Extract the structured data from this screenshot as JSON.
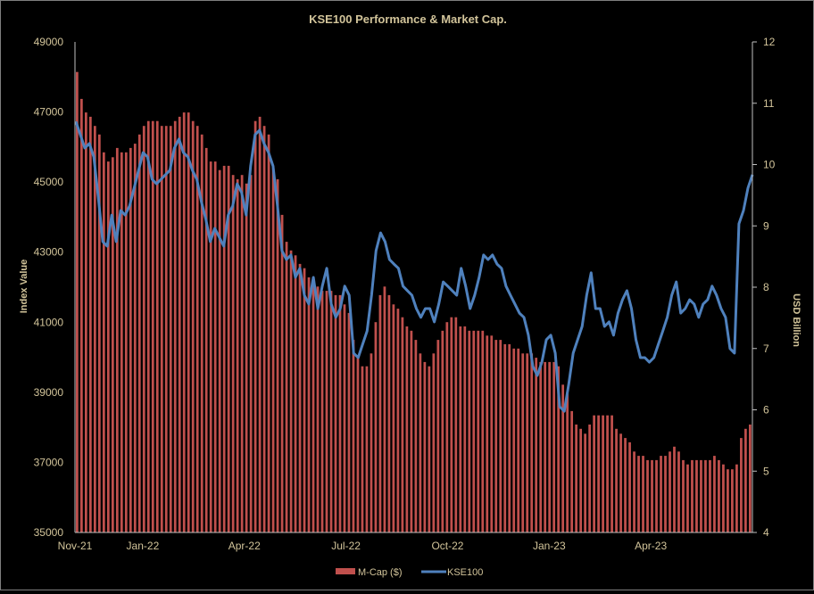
{
  "chart_data": {
    "type": "bar+line",
    "title": "KSE100 Performance & Market Cap.",
    "ylabel": "Index Value",
    "y2label": "USD Billion",
    "ylim": [
      35000,
      49000
    ],
    "y2lim": [
      4,
      12
    ],
    "yticks": [
      "35000",
      "37000",
      "39000",
      "41000",
      "43000",
      "45000",
      "47000",
      "49000"
    ],
    "y2ticks": [
      "4",
      "5",
      "6",
      "7",
      "8",
      "9",
      "10",
      "11",
      "12"
    ],
    "xticks": [
      "Nov-21",
      "Jan-22",
      "Apr-22",
      "Jul-22",
      "Oct-22",
      "Jan-23",
      "Apr-23"
    ],
    "x_start": "2021-11-01",
    "x_end": "2023-06-30",
    "grid": false,
    "legend_position": "bottom",
    "colors": {
      "mcap": "#c0504d",
      "kse": "#4f81bd",
      "text": "#d2c49a"
    },
    "series": [
      {
        "name": "M-Cap ($)",
        "axis": "right",
        "type": "bar",
        "values": [
          11.51,
          11.07,
          10.85,
          10.78,
          10.63,
          10.49,
          10.2,
          10.05,
          10.12,
          10.27,
          10.2,
          10.2,
          10.27,
          10.34,
          10.49,
          10.63,
          10.71,
          10.71,
          10.71,
          10.63,
          10.63,
          10.63,
          10.71,
          10.78,
          10.85,
          10.85,
          10.71,
          10.63,
          10.49,
          10.27,
          10.05,
          10.05,
          9.91,
          9.98,
          9.98,
          9.83,
          9.76,
          9.83,
          9.69,
          9.83,
          10.71,
          10.78,
          10.63,
          10.49,
          9.98,
          9.76,
          9.18,
          8.74,
          8.6,
          8.52,
          8.38,
          8.31,
          8.16,
          8.09,
          8.01,
          7.94,
          7.94,
          7.94,
          7.87,
          7.87,
          7.72,
          7.58,
          7.14,
          6.85,
          6.71,
          6.71,
          6.92,
          7.43,
          7.87,
          8.01,
          7.87,
          7.72,
          7.65,
          7.51,
          7.36,
          7.29,
          7.14,
          6.92,
          6.78,
          6.71,
          6.92,
          7.14,
          7.29,
          7.43,
          7.51,
          7.51,
          7.36,
          7.36,
          7.29,
          7.29,
          7.29,
          7.29,
          7.21,
          7.21,
          7.14,
          7.14,
          7.07,
          7.07,
          7.0,
          7.0,
          6.92,
          6.92,
          6.92,
          6.85,
          6.78,
          6.78,
          6.78,
          6.78,
          6.71,
          6.41,
          6.27,
          5.98,
          5.76,
          5.69,
          5.61,
          5.76,
          5.91,
          5.91,
          5.91,
          5.91,
          5.91,
          5.69,
          5.61,
          5.54,
          5.47,
          5.32,
          5.25,
          5.25,
          5.18,
          5.18,
          5.18,
          5.25,
          5.25,
          5.32,
          5.4,
          5.32,
          5.18,
          5.11,
          5.18,
          5.18,
          5.18,
          5.18,
          5.18,
          5.25,
          5.18,
          5.11,
          5.03,
          5.03,
          5.11,
          5.54,
          5.69,
          5.76
        ]
      },
      {
        "name": "KSE100",
        "axis": "left",
        "type": "line",
        "values": [
          46730,
          46350,
          45970,
          46100,
          45720,
          44570,
          43300,
          43170,
          44060,
          43300,
          44190,
          44060,
          44320,
          44830,
          45340,
          45840,
          45720,
          45080,
          44950,
          45080,
          45210,
          45340,
          45970,
          46230,
          45840,
          45720,
          45340,
          45080,
          44440,
          43940,
          43300,
          43680,
          43430,
          43170,
          44060,
          44320,
          44950,
          44700,
          44060,
          45460,
          46350,
          46480,
          46100,
          45840,
          45460,
          44320,
          43040,
          42790,
          42920,
          42280,
          42540,
          41770,
          41520,
          42280,
          41390,
          42030,
          42540,
          41520,
          41140,
          41390,
          42030,
          41770,
          40120,
          39990,
          40370,
          40750,
          41770,
          43040,
          43550,
          43300,
          42790,
          42660,
          42540,
          42030,
          41900,
          41770,
          41390,
          41140,
          41390,
          41390,
          41010,
          41520,
          42150,
          42030,
          41900,
          41770,
          42540,
          42030,
          41390,
          41770,
          42280,
          42920,
          42790,
          42920,
          42660,
          42540,
          42030,
          41770,
          41520,
          41260,
          41140,
          40630,
          39740,
          39480,
          39860,
          40500,
          40630,
          40120,
          38590,
          38460,
          39230,
          40120,
          40500,
          40880,
          41770,
          42410,
          41390,
          41390,
          40880,
          41010,
          40630,
          41260,
          41640,
          41900,
          41390,
          40500,
          39990,
          39990,
          39860,
          39990,
          40370,
          40750,
          41140,
          41770,
          42150,
          41260,
          41390,
          41640,
          41520,
          41140,
          41520,
          41640,
          42030,
          41770,
          41390,
          41140,
          40250,
          40120,
          43810,
          44190,
          44830,
          45210
        ]
      }
    ]
  }
}
